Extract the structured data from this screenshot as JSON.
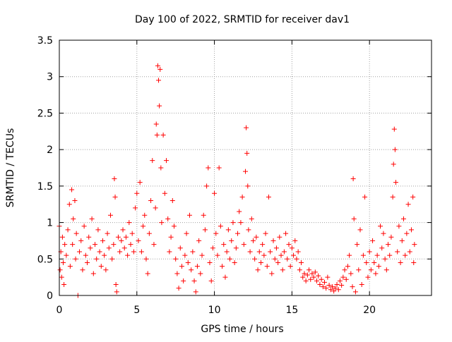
{
  "chart_data": {
    "type": "scatter",
    "title": "Day 100 of 2022, SRMTID for receiver dav1",
    "xlabel": "GPS time / hours",
    "ylabel": "SRMTID / TECUs",
    "xlim": [
      0,
      24
    ],
    "ylim": [
      0,
      3.5
    ],
    "x_ticks": [
      0,
      5,
      10,
      15,
      20
    ],
    "x_tick_labels": [
      "0",
      "5",
      "10",
      "15",
      "20"
    ],
    "y_ticks": [
      0,
      0.5,
      1,
      1.5,
      2,
      2.5,
      3,
      3.5
    ],
    "y_tick_labels": [
      "0",
      "0.5",
      "1",
      "1.5",
      "2",
      "2.5",
      "3",
      "3.5"
    ],
    "grid": true,
    "marker": "+",
    "marker_color": "#ff0000",
    "series": [
      {
        "name": "SRMTID",
        "points": [
          [
            0.0,
            0.95
          ],
          [
            0.05,
            0.35
          ],
          [
            0.1,
            0.6
          ],
          [
            0.15,
            0.25
          ],
          [
            0.2,
            0.8
          ],
          [
            0.25,
            0.45
          ],
          [
            0.3,
            0.15
          ],
          [
            0.35,
            0.7
          ],
          [
            0.45,
            0.55
          ],
          [
            0.55,
            0.9
          ],
          [
            0.65,
            1.25
          ],
          [
            0.7,
            0.4
          ],
          [
            0.8,
            1.45
          ],
          [
            0.85,
            0.7
          ],
          [
            0.9,
            1.05
          ],
          [
            1.0,
            1.3
          ],
          [
            1.05,
            0.5
          ],
          [
            1.1,
            0.85
          ],
          [
            1.2,
            0.0
          ],
          [
            1.3,
            0.6
          ],
          [
            1.4,
            0.75
          ],
          [
            1.5,
            0.35
          ],
          [
            1.6,
            0.95
          ],
          [
            1.7,
            0.55
          ],
          [
            1.8,
            0.45
          ],
          [
            1.9,
            0.8
          ],
          [
            2.0,
            0.65
          ],
          [
            2.1,
            1.05
          ],
          [
            2.2,
            0.3
          ],
          [
            2.3,
            0.7
          ],
          [
            2.4,
            0.5
          ],
          [
            2.5,
            0.9
          ],
          [
            2.6,
            0.6
          ],
          [
            2.7,
            0.4
          ],
          [
            2.8,
            0.75
          ],
          [
            2.9,
            0.55
          ],
          [
            3.0,
            0.35
          ],
          [
            3.1,
            0.85
          ],
          [
            3.2,
            0.65
          ],
          [
            3.3,
            1.1
          ],
          [
            3.4,
            0.5
          ],
          [
            3.5,
            0.7
          ],
          [
            3.55,
            1.6
          ],
          [
            3.6,
            1.35
          ],
          [
            3.65,
            0.15
          ],
          [
            3.7,
            0.05
          ],
          [
            3.8,
            0.8
          ],
          [
            3.9,
            0.6
          ],
          [
            4.0,
            0.75
          ],
          [
            4.1,
            0.9
          ],
          [
            4.2,
            0.65
          ],
          [
            4.3,
            0.8
          ],
          [
            4.4,
            0.55
          ],
          [
            4.5,
            1.0
          ],
          [
            4.6,
            0.7
          ],
          [
            4.7,
            0.85
          ],
          [
            4.8,
            0.6
          ],
          [
            4.9,
            1.2
          ],
          [
            5.0,
            1.4
          ],
          [
            5.1,
            0.75
          ],
          [
            5.2,
            1.55
          ],
          [
            5.3,
            0.6
          ],
          [
            5.4,
            0.95
          ],
          [
            5.5,
            1.1
          ],
          [
            5.6,
            0.5
          ],
          [
            5.7,
            0.3
          ],
          [
            5.8,
            0.85
          ],
          [
            5.9,
            1.3
          ],
          [
            6.0,
            1.85
          ],
          [
            6.1,
            0.7
          ],
          [
            6.2,
            1.2
          ],
          [
            6.25,
            2.35
          ],
          [
            6.3,
            2.2
          ],
          [
            6.35,
            3.15
          ],
          [
            6.4,
            2.95
          ],
          [
            6.45,
            2.6
          ],
          [
            6.5,
            3.1
          ],
          [
            6.55,
            1.75
          ],
          [
            6.6,
            1.0
          ],
          [
            6.7,
            2.2
          ],
          [
            6.8,
            1.4
          ],
          [
            6.9,
            1.85
          ],
          [
            7.0,
            1.05
          ],
          [
            7.1,
            0.6
          ],
          [
            7.2,
            0.8
          ],
          [
            7.3,
            1.3
          ],
          [
            7.4,
            0.95
          ],
          [
            7.5,
            0.5
          ],
          [
            7.6,
            0.3
          ],
          [
            7.7,
            0.1
          ],
          [
            7.8,
            0.65
          ],
          [
            7.9,
            0.4
          ],
          [
            8.0,
            0.2
          ],
          [
            8.1,
            0.55
          ],
          [
            8.2,
            0.85
          ],
          [
            8.3,
            0.45
          ],
          [
            8.4,
            1.1
          ],
          [
            8.5,
            0.35
          ],
          [
            8.6,
            0.6
          ],
          [
            8.7,
            0.2
          ],
          [
            8.8,
            0.05
          ],
          [
            8.9,
            0.4
          ],
          [
            9.0,
            0.75
          ],
          [
            9.1,
            0.3
          ],
          [
            9.2,
            0.55
          ],
          [
            9.3,
            1.1
          ],
          [
            9.4,
            0.9
          ],
          [
            9.5,
            1.5
          ],
          [
            9.6,
            1.75
          ],
          [
            9.7,
            0.45
          ],
          [
            9.8,
            0.2
          ],
          [
            9.9,
            0.65
          ],
          [
            10.0,
            1.4
          ],
          [
            10.1,
            0.85
          ],
          [
            10.2,
            0.55
          ],
          [
            10.3,
            1.75
          ],
          [
            10.4,
            0.95
          ],
          [
            10.5,
            0.4
          ],
          [
            10.6,
            0.7
          ],
          [
            10.7,
            0.25
          ],
          [
            10.8,
            0.6
          ],
          [
            10.9,
            0.9
          ],
          [
            11.0,
            0.5
          ],
          [
            11.1,
            0.75
          ],
          [
            11.2,
            1.0
          ],
          [
            11.3,
            0.45
          ],
          [
            11.4,
            0.65
          ],
          [
            11.5,
            0.85
          ],
          [
            11.6,
            1.15
          ],
          [
            11.7,
            1.0
          ],
          [
            11.8,
            1.35
          ],
          [
            11.9,
            0.7
          ],
          [
            12.0,
            1.7
          ],
          [
            12.05,
            2.3
          ],
          [
            12.1,
            1.95
          ],
          [
            12.15,
            1.5
          ],
          [
            12.2,
            0.9
          ],
          [
            12.3,
            0.6
          ],
          [
            12.4,
            1.05
          ],
          [
            12.5,
            0.75
          ],
          [
            12.6,
            0.5
          ],
          [
            12.7,
            0.8
          ],
          [
            12.8,
            0.35
          ],
          [
            12.9,
            0.6
          ],
          [
            13.0,
            0.45
          ],
          [
            13.1,
            0.7
          ],
          [
            13.2,
            0.55
          ],
          [
            13.3,
            0.85
          ],
          [
            13.4,
            0.4
          ],
          [
            13.5,
            1.35
          ],
          [
            13.6,
            0.6
          ],
          [
            13.7,
            0.3
          ],
          [
            13.8,
            0.75
          ],
          [
            13.9,
            0.5
          ],
          [
            14.0,
            0.65
          ],
          [
            14.1,
            0.45
          ],
          [
            14.2,
            0.8
          ],
          [
            14.3,
            0.55
          ],
          [
            14.4,
            0.35
          ],
          [
            14.5,
            0.6
          ],
          [
            14.6,
            0.85
          ],
          [
            14.7,
            0.5
          ],
          [
            14.8,
            0.7
          ],
          [
            14.9,
            0.4
          ],
          [
            15.0,
            0.65
          ],
          [
            15.1,
            0.55
          ],
          [
            15.2,
            0.75
          ],
          [
            15.3,
            0.5
          ],
          [
            15.4,
            0.6
          ],
          [
            15.5,
            0.35
          ],
          [
            15.6,
            0.45
          ],
          [
            15.7,
            0.25
          ],
          [
            15.8,
            0.3
          ],
          [
            15.9,
            0.2
          ],
          [
            16.0,
            0.28
          ],
          [
            16.1,
            0.35
          ],
          [
            16.2,
            0.22
          ],
          [
            16.3,
            0.3
          ],
          [
            16.4,
            0.25
          ],
          [
            16.5,
            0.32
          ],
          [
            16.6,
            0.2
          ],
          [
            16.7,
            0.27
          ],
          [
            16.8,
            0.15
          ],
          [
            16.9,
            0.22
          ],
          [
            17.0,
            0.12
          ],
          [
            17.1,
            0.18
          ],
          [
            17.2,
            0.1
          ],
          [
            17.3,
            0.25
          ],
          [
            17.4,
            0.14
          ],
          [
            17.5,
            0.08
          ],
          [
            17.6,
            0.12
          ],
          [
            17.7,
            0.06
          ],
          [
            17.8,
            0.1
          ],
          [
            17.9,
            0.15
          ],
          [
            18.0,
            0.08
          ],
          [
            18.1,
            0.2
          ],
          [
            18.2,
            0.14
          ],
          [
            18.3,
            0.25
          ],
          [
            18.4,
            0.35
          ],
          [
            18.5,
            0.22
          ],
          [
            18.6,
            0.4
          ],
          [
            18.7,
            0.55
          ],
          [
            18.8,
            0.3
          ],
          [
            18.9,
            0.12
          ],
          [
            18.95,
            1.6
          ],
          [
            19.0,
            1.05
          ],
          [
            19.1,
            0.05
          ],
          [
            19.2,
            0.7
          ],
          [
            19.3,
            0.35
          ],
          [
            19.4,
            0.9
          ],
          [
            19.5,
            0.15
          ],
          [
            19.6,
            0.55
          ],
          [
            19.7,
            1.35
          ],
          [
            19.8,
            0.45
          ],
          [
            19.9,
            0.25
          ],
          [
            20.0,
            0.6
          ],
          [
            20.1,
            0.35
          ],
          [
            20.2,
            0.75
          ],
          [
            20.3,
            0.45
          ],
          [
            20.4,
            0.3
          ],
          [
            20.5,
            0.55
          ],
          [
            20.6,
            0.4
          ],
          [
            20.7,
            0.95
          ],
          [
            20.8,
            0.65
          ],
          [
            20.9,
            0.85
          ],
          [
            21.0,
            0.5
          ],
          [
            21.1,
            0.35
          ],
          [
            21.2,
            0.7
          ],
          [
            21.3,
            0.55
          ],
          [
            21.4,
            0.8
          ],
          [
            21.5,
            1.35
          ],
          [
            21.55,
            1.8
          ],
          [
            21.6,
            2.28
          ],
          [
            21.65,
            2.0
          ],
          [
            21.7,
            1.55
          ],
          [
            21.8,
            0.6
          ],
          [
            21.9,
            0.95
          ],
          [
            22.0,
            0.45
          ],
          [
            22.1,
            0.75
          ],
          [
            22.2,
            1.05
          ],
          [
            22.3,
            0.55
          ],
          [
            22.4,
            0.85
          ],
          [
            22.5,
            1.25
          ],
          [
            22.6,
            0.6
          ],
          [
            22.7,
            0.9
          ],
          [
            22.8,
            1.35
          ],
          [
            22.85,
            0.45
          ],
          [
            22.9,
            0.7
          ]
        ]
      }
    ]
  }
}
